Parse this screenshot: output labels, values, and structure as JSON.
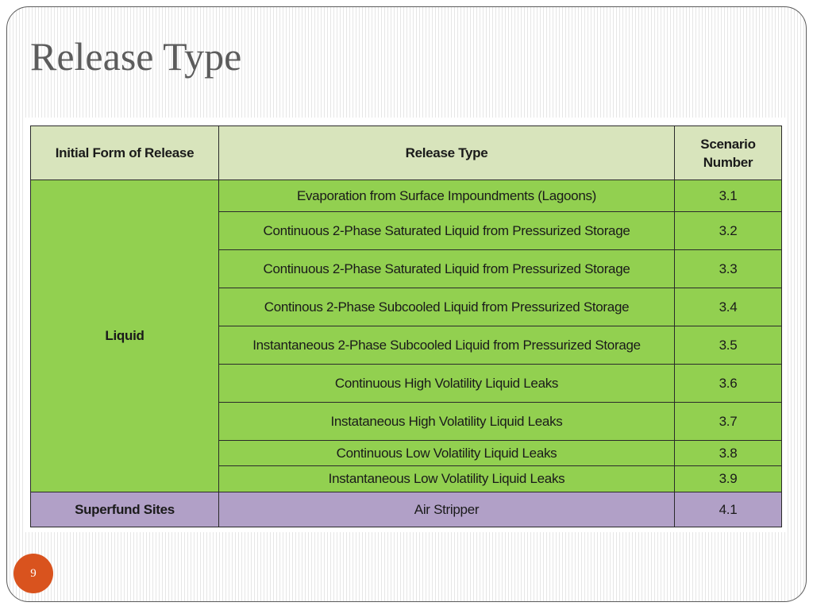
{
  "slide": {
    "title": "Release Type",
    "page_number": "9"
  },
  "table": {
    "headers": {
      "initial_form": "Initial Form of Release",
      "release_type": "Release Type",
      "scenario_line1": "Scenario",
      "scenario_line2": "Number"
    },
    "groups": [
      {
        "form": "Liquid",
        "rows": [
          {
            "release_type": "Evaporation from Surface Impoundments (Lagoons)",
            "scenario": "3.1"
          },
          {
            "release_type": "Continuous 2-Phase Saturated Liquid from Pressurized Storage",
            "scenario": "3.2"
          },
          {
            "release_type": "Continuous 2-Phase Saturated Liquid from Pressurized Storage",
            "scenario": "3.3"
          },
          {
            "release_type": "Continous 2-Phase Subcooled Liquid from Pressurized Storage",
            "scenario": "3.4"
          },
          {
            "release_type": "Instantaneous 2-Phase Subcooled Liquid from Pressurized Storage",
            "scenario": "3.5"
          },
          {
            "release_type": "Continuous High Volatility Liquid Leaks",
            "scenario": "3.6"
          },
          {
            "release_type": "Instataneous High Volatility Liquid Leaks",
            "scenario": "3.7"
          },
          {
            "release_type": "Continuous Low Volatility Liquid Leaks",
            "scenario": "3.8"
          },
          {
            "release_type": "Instantaneous Low Volatility Liquid Leaks",
            "scenario": "3.9"
          }
        ]
      },
      {
        "form": "Superfund Sites",
        "rows": [
          {
            "release_type": "Air Stripper",
            "scenario": "4.1"
          }
        ]
      }
    ]
  },
  "colors": {
    "header_fill": "#d8e4bc",
    "liquid_fill": "#92d050",
    "superfund_fill": "#b1a0c7",
    "slide_number_fill": "#d9531e",
    "title_color": "#5c5c5c"
  }
}
